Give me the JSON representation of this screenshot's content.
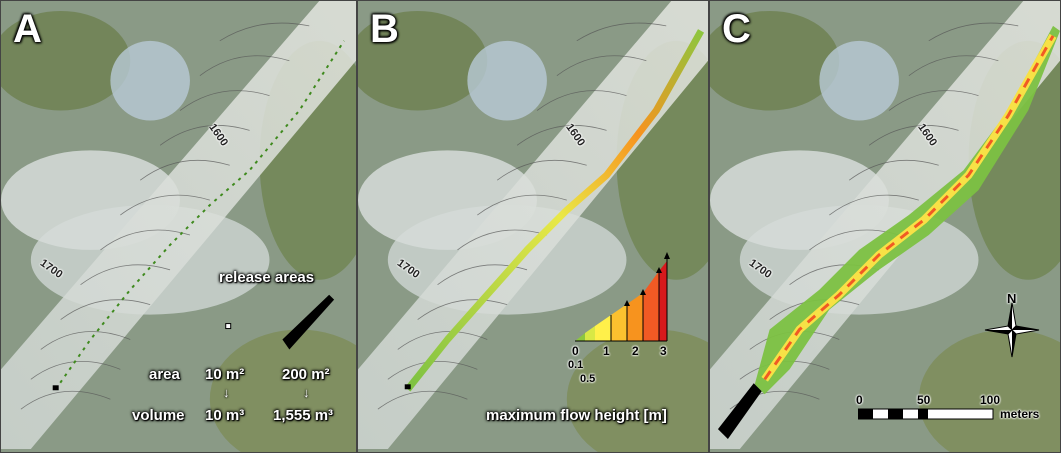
{
  "panels": [
    {
      "label": "A"
    },
    {
      "label": "B"
    },
    {
      "label": "C"
    }
  ],
  "contours": {
    "upper": "1600",
    "lower": "1700"
  },
  "panel_a": {
    "title": "release areas",
    "row_area": "area",
    "row_volume": "volume",
    "small_area": "10 m²",
    "large_area": "200 m²",
    "small_volume": "10 m³",
    "large_volume": "1,555 m³",
    "arrow": "↓"
  },
  "panel_b": {
    "legend_title": "maximum flow height [m]",
    "ticks": [
      "0",
      "1",
      "2",
      "3"
    ],
    "minor_ticks": [
      "0.1",
      "0.5"
    ],
    "colors": [
      "#8dc63f",
      "#d8e845",
      "#fff04a",
      "#fcc12f",
      "#f7931e",
      "#f15a24",
      "#d7191c"
    ]
  },
  "panel_c": {
    "north": "N",
    "scale_ticks": [
      "0",
      "50",
      "100"
    ],
    "scale_unit": "meters"
  }
}
